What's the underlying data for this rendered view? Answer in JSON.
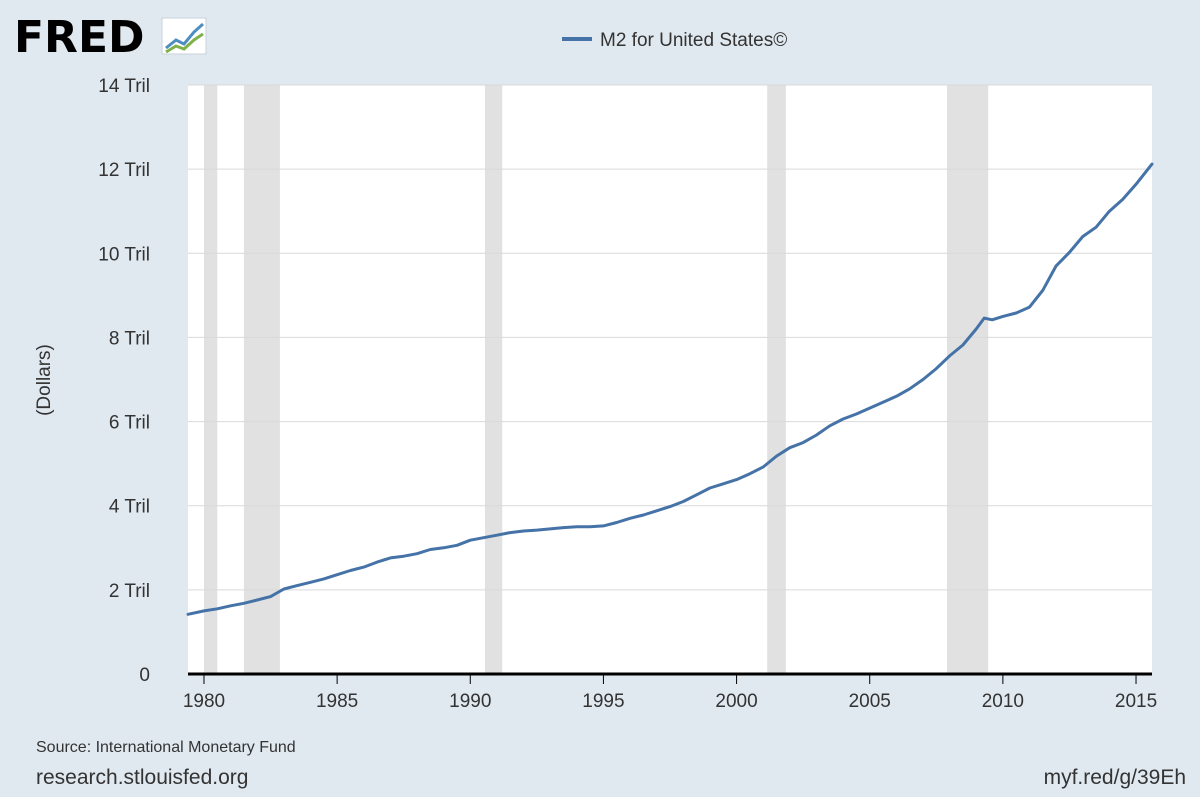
{
  "brand": {
    "logo_text": "FRED"
  },
  "footer": {
    "source": "Source: International Monetary Fund",
    "site": "research.stlouisfed.org",
    "short_url": "myf.red/g/39Eh"
  },
  "colors": {
    "series": "#4572a7",
    "recession": "#e1e1e1",
    "grid": "#d9d9d9",
    "background": "#e1e9f0",
    "plot_bg": "#ffffff"
  },
  "chart_data": {
    "type": "line",
    "title": "",
    "xlabel": "",
    "ylabel": "(Dollars)",
    "xlim": [
      1979.4,
      2015.6
    ],
    "ylim": [
      0,
      14
    ],
    "grid": true,
    "legend_position": "top-center",
    "y_ticks": [
      {
        "value": 0,
        "label": "0"
      },
      {
        "value": 2,
        "label": "2 Tril"
      },
      {
        "value": 4,
        "label": "4 Tril"
      },
      {
        "value": 6,
        "label": "6 Tril"
      },
      {
        "value": 8,
        "label": "8 Tril"
      },
      {
        "value": 10,
        "label": "10 Tril"
      },
      {
        "value": 12,
        "label": "12 Tril"
      },
      {
        "value": 14,
        "label": "14 Tril"
      }
    ],
    "x_ticks": [
      {
        "value": 1980,
        "label": "1980"
      },
      {
        "value": 1985,
        "label": "1985"
      },
      {
        "value": 1990,
        "label": "1990"
      },
      {
        "value": 1995,
        "label": "1995"
      },
      {
        "value": 2000,
        "label": "2000"
      },
      {
        "value": 2005,
        "label": "2005"
      },
      {
        "value": 2010,
        "label": "2010"
      },
      {
        "value": 2015,
        "label": "2015"
      }
    ],
    "recessions": [
      [
        1980.0,
        1980.5
      ],
      [
        1981.5,
        1982.85
      ],
      [
        1990.55,
        1991.2
      ],
      [
        2001.15,
        2001.85
      ],
      [
        2007.9,
        2009.45
      ]
    ],
    "series": [
      {
        "name": "M2 for United States©",
        "points": [
          [
            1979.4,
            1.42
          ],
          [
            1980.0,
            1.5
          ],
          [
            1980.5,
            1.55
          ],
          [
            1981.0,
            1.62
          ],
          [
            1981.5,
            1.68
          ],
          [
            1982.0,
            1.76
          ],
          [
            1982.5,
            1.84
          ],
          [
            1983.0,
            2.02
          ],
          [
            1983.5,
            2.1
          ],
          [
            1984.0,
            2.18
          ],
          [
            1984.5,
            2.26
          ],
          [
            1985.0,
            2.36
          ],
          [
            1985.5,
            2.46
          ],
          [
            1986.0,
            2.54
          ],
          [
            1986.5,
            2.66
          ],
          [
            1987.0,
            2.76
          ],
          [
            1987.5,
            2.8
          ],
          [
            1988.0,
            2.86
          ],
          [
            1988.5,
            2.96
          ],
          [
            1989.0,
            3.0
          ],
          [
            1989.5,
            3.06
          ],
          [
            1990.0,
            3.18
          ],
          [
            1990.5,
            3.24
          ],
          [
            1991.0,
            3.3
          ],
          [
            1991.5,
            3.36
          ],
          [
            1992.0,
            3.4
          ],
          [
            1992.5,
            3.42
          ],
          [
            1993.0,
            3.45
          ],
          [
            1993.5,
            3.48
          ],
          [
            1994.0,
            3.5
          ],
          [
            1994.5,
            3.5
          ],
          [
            1995.0,
            3.52
          ],
          [
            1995.5,
            3.6
          ],
          [
            1996.0,
            3.7
          ],
          [
            1996.5,
            3.78
          ],
          [
            1997.0,
            3.88
          ],
          [
            1997.5,
            3.98
          ],
          [
            1998.0,
            4.1
          ],
          [
            1998.5,
            4.26
          ],
          [
            1999.0,
            4.42
          ],
          [
            1999.5,
            4.52
          ],
          [
            2000.0,
            4.62
          ],
          [
            2000.5,
            4.76
          ],
          [
            2001.0,
            4.92
          ],
          [
            2001.5,
            5.18
          ],
          [
            2002.0,
            5.38
          ],
          [
            2002.5,
            5.5
          ],
          [
            2003.0,
            5.68
          ],
          [
            2003.5,
            5.9
          ],
          [
            2004.0,
            6.06
          ],
          [
            2004.5,
            6.18
          ],
          [
            2005.0,
            6.32
          ],
          [
            2005.5,
            6.46
          ],
          [
            2006.0,
            6.6
          ],
          [
            2006.5,
            6.78
          ],
          [
            2007.0,
            7.0
          ],
          [
            2007.5,
            7.26
          ],
          [
            2008.0,
            7.56
          ],
          [
            2008.5,
            7.82
          ],
          [
            2009.0,
            8.2
          ],
          [
            2009.3,
            8.46
          ],
          [
            2009.6,
            8.42
          ],
          [
            2010.0,
            8.5
          ],
          [
            2010.5,
            8.58
          ],
          [
            2011.0,
            8.72
          ],
          [
            2011.5,
            9.12
          ],
          [
            2012.0,
            9.7
          ],
          [
            2012.5,
            10.02
          ],
          [
            2013.0,
            10.4
          ],
          [
            2013.5,
            10.62
          ],
          [
            2014.0,
            11.0
          ],
          [
            2014.5,
            11.28
          ],
          [
            2015.0,
            11.64
          ],
          [
            2015.6,
            12.12
          ]
        ]
      }
    ]
  }
}
